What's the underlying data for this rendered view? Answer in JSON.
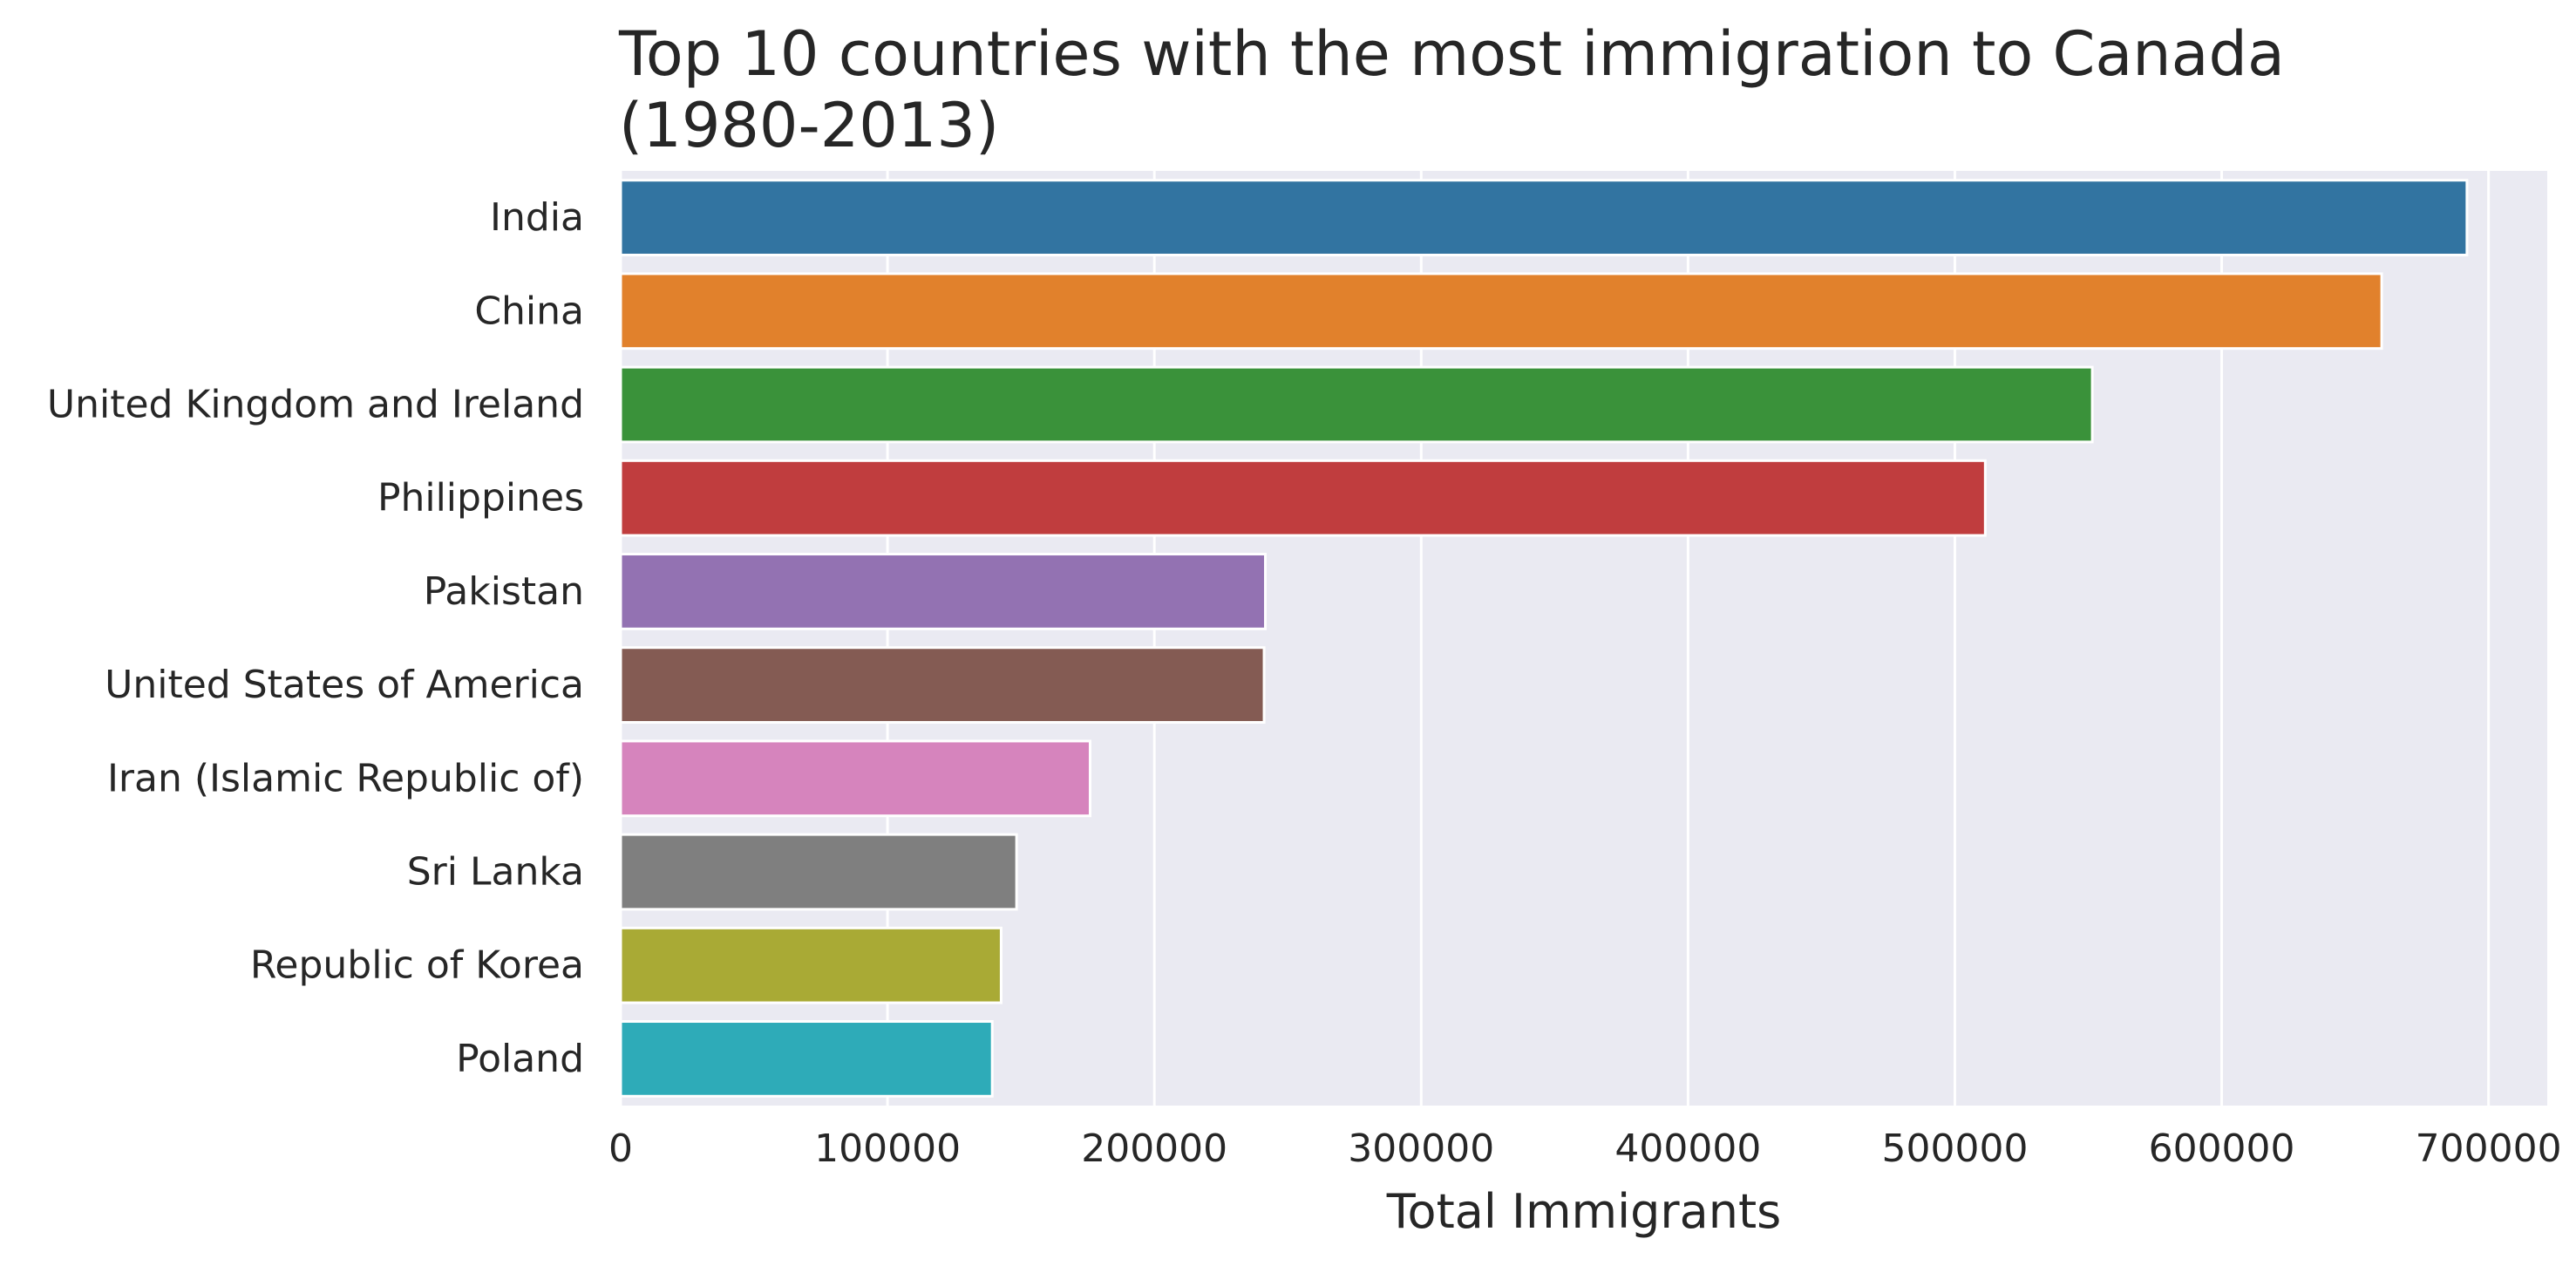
{
  "chart_data": {
    "type": "bar",
    "orientation": "horizontal",
    "title": "Top 10 countries with the most immigration to Canada (1980-2013)",
    "title_lines": [
      "Top 10 countries with the most immigration to Canada",
      "(1980-2013)"
    ],
    "xlabel": "Total Immigrants",
    "ylabel": "",
    "categories": [
      "India",
      "China",
      "United Kingdom and Ireland",
      "Philippines",
      "Pakistan",
      "United States of America",
      "Iran (Islamic Republic of)",
      "Sri Lanka",
      "Republic of Korea",
      "Poland"
    ],
    "values": [
      691904,
      659962,
      551500,
      511391,
      241600,
      241122,
      175923,
      148358,
      142581,
      139241
    ],
    "colors": [
      "#3274a1",
      "#e1812c",
      "#3a923a",
      "#c03d3e",
      "#9372b2",
      "#845b53",
      "#d684bd",
      "#7f7f7f",
      "#a9aa35",
      "#2eabb8"
    ],
    "xlim": [
      0,
      722000
    ],
    "xticks": [
      0,
      100000,
      200000,
      300000,
      400000,
      500000,
      600000,
      700000
    ],
    "xtick_labels": [
      "0",
      "100000",
      "200000",
      "300000",
      "400000",
      "500000",
      "600000",
      "700000"
    ],
    "grid": true,
    "background": "#eaeaf2",
    "grid_color": "#ffffff"
  }
}
